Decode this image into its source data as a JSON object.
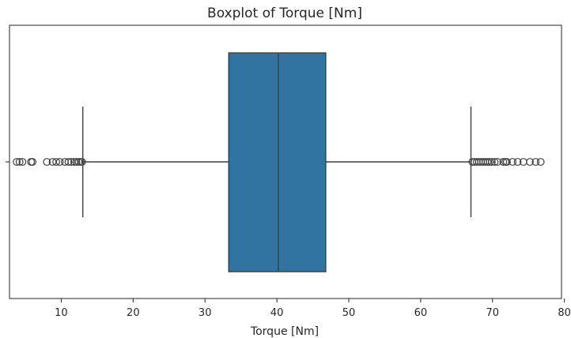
{
  "chart_data": {
    "type": "boxplot",
    "title": "Boxplot of Torque [Nm]",
    "xlabel": "Torque [Nm]",
    "ylabel": "",
    "orientation": "horizontal",
    "xlim": [
      2.8,
      79.6
    ],
    "xticks": [
      10,
      20,
      30,
      40,
      50,
      60,
      70,
      80
    ],
    "grid": false,
    "box_color": "#3274a1",
    "line_color": "#3f3f3f",
    "box": {
      "whisker_low": 13.0,
      "q1": 33.3,
      "median": 40.2,
      "q3": 46.8,
      "whisker_high": 67.0
    },
    "outliers_low": [
      3.8,
      4.2,
      4.6,
      5.8,
      6.0,
      8.0,
      8.8,
      9.3,
      9.8,
      10.5,
      11.0,
      11.4,
      11.8,
      12.1,
      12.4,
      12.7,
      12.9
    ],
    "outliers_high": [
      67.2,
      67.5,
      67.8,
      68.1,
      68.4,
      68.7,
      69.0,
      69.3,
      69.6,
      69.9,
      70.3,
      70.7,
      71.5,
      71.8,
      72.0,
      72.8,
      73.5,
      74.3,
      75.2,
      76.0,
      76.7
    ]
  }
}
